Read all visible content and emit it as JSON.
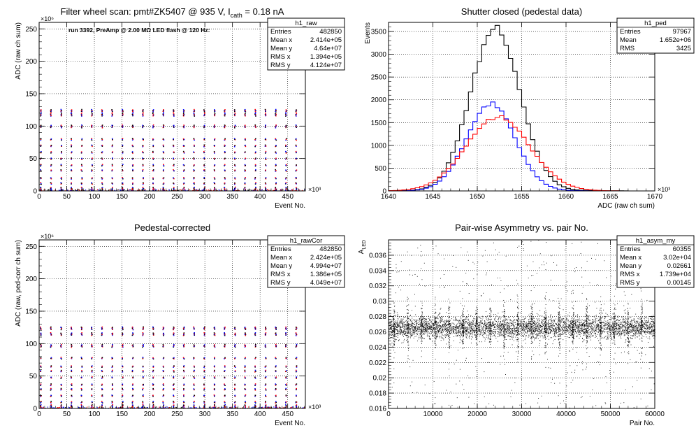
{
  "chart_data": [
    {
      "type": "scatter",
      "title": "Filter wheel scan: pmt#ZK5407 @   935 V, I",
      "title_sub": "cath",
      "title_tail": " = 0.18 nA",
      "annotation": "run 3392, PreAmp @ 2.00 MΩ LED flash @  120 Hz:",
      "xlabel": "Event No.",
      "ylabel": "ADC (raw ch sum)",
      "x_exponent": "×10³",
      "y_exponent": "×10⁶",
      "xlim": [
        0,
        482
      ],
      "ylim": [
        0,
        260
      ],
      "x_ticks": [
        "0",
        "50",
        "100",
        "150",
        "200",
        "250",
        "300",
        "350",
        "400",
        "450"
      ],
      "y_ticks": [
        "0",
        "50",
        "100",
        "150",
        "200",
        "250"
      ],
      "grid": true,
      "stats": {
        "name": "h1_raw",
        "rows": [
          [
            "Entries",
            "482850"
          ],
          [
            "Mean x",
            "2.414e+05"
          ],
          [
            "Mean y",
            "4.64e+07"
          ],
          [
            "RMS x",
            "1.394e+05"
          ],
          [
            "RMS y",
            "4.124e+07"
          ]
        ]
      },
      "points": {
        "period": 18.5,
        "levels": [
          2,
          5,
          12,
          20,
          32,
          40,
          50,
          60,
          70,
          80,
          100,
          118,
          124
        ],
        "colors": [
          "#0000ff",
          "#ff0000",
          "#000000"
        ]
      }
    },
    {
      "type": "line",
      "title": "Shutter closed (pedestal data)",
      "xlabel": "ADC (raw ch sum)",
      "ylabel": "Events",
      "x_exponent": "×10³",
      "xlim": [
        1640,
        1670
      ],
      "ylim": [
        0,
        3700
      ],
      "x_ticks": [
        "1640",
        "1645",
        "1650",
        "1655",
        "1660",
        "1665",
        "1670"
      ],
      "y_ticks": [
        "0",
        "500",
        "1000",
        "1500",
        "2000",
        "2500",
        "3000",
        "3500"
      ],
      "grid": true,
      "stats": {
        "name": "h1_ped",
        "rows": [
          [
            "Entries",
            "97967"
          ],
          [
            "Mean",
            "1.652e+06"
          ],
          [
            "RMS",
            "3425"
          ]
        ]
      },
      "series": [
        {
          "color": "#000000",
          "mean": 1652.0,
          "sigma": 2.8,
          "peak": 3520,
          "tail": 0.55
        },
        {
          "color": "#0000ff",
          "mean": 1651.5,
          "sigma": 2.75,
          "peak": 1900,
          "tail": 0.35
        },
        {
          "color": "#ff0000",
          "mean": 1652.3,
          "sigma": 3.6,
          "peak": 1610,
          "tail": 0.35
        }
      ]
    },
    {
      "type": "scatter",
      "title": "Pedestal-corrected",
      "xlabel": "Event No.",
      "ylabel": "ADC (raw, ped-corr ch sum)",
      "x_exponent": "×10³",
      "y_exponent": "×10⁶",
      "xlim": [
        0,
        482
      ],
      "ylim": [
        0,
        260
      ],
      "x_ticks": [
        "0",
        "50",
        "100",
        "150",
        "200",
        "250",
        "300",
        "350",
        "400",
        "450"
      ],
      "y_ticks": [
        "0",
        "50",
        "100",
        "150",
        "200",
        "250"
      ],
      "grid": true,
      "stats": {
        "name": "h1_rawCor",
        "rows": [
          [
            "Entries",
            "482850"
          ],
          [
            "Mean x",
            "2.424e+05"
          ],
          [
            "Mean y",
            "4.994e+07"
          ],
          [
            "RMS x",
            "1.386e+05"
          ],
          [
            "RMS y",
            "4.049e+07"
          ]
        ]
      },
      "points": {
        "period": 18.5,
        "levels": [
          2,
          5,
          10,
          20,
          30,
          37,
          48,
          58,
          65,
          78,
          97,
          115,
          124
        ],
        "colors": [
          "#0000ff",
          "#ff0000",
          "#000000"
        ]
      }
    },
    {
      "type": "scatter",
      "title": "Pair-wise Asymmetry vs. pair No.",
      "xlabel": "Pair No.",
      "ylabel": "A",
      "ylabel_sub": "LED",
      "xlim": [
        0,
        60000
      ],
      "ylim": [
        0.016,
        0.038
      ],
      "x_ticks": [
        "0",
        "10000",
        "20000",
        "30000",
        "40000",
        "50000",
        "60000"
      ],
      "y_ticks": [
        "0.016",
        "0.018",
        "0.02",
        "0.022",
        "0.024",
        "0.026",
        "0.028",
        "0.03",
        "0.032",
        "0.034",
        "0.036"
      ],
      "grid": true,
      "stats": {
        "name": "h1_asym_my",
        "rows": [
          [
            "Entries",
            "60355"
          ],
          [
            "Mean x",
            "3.02e+04"
          ],
          [
            "Mean y",
            "0.02661"
          ],
          [
            "RMS x",
            "1.739e+04"
          ],
          [
            "RMS y",
            "0.00145"
          ]
        ]
      },
      "points": {
        "center": 0.0266,
        "band": 0.0007,
        "spike_period": 3100,
        "colors": [
          "#000000"
        ]
      }
    }
  ]
}
